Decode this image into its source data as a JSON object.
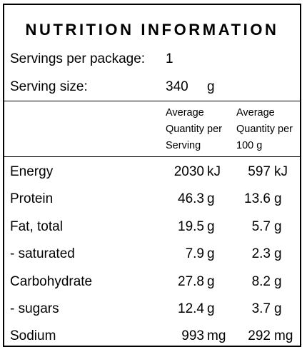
{
  "title": "NUTRITION INFORMATION",
  "servings": {
    "label": "Servings per package:",
    "value": "1"
  },
  "serving_size": {
    "label": "Serving size:",
    "value": "340",
    "unit": "g"
  },
  "columns": {
    "per_serving": [
      "Average",
      "Quantity per",
      "Serving"
    ],
    "per_100g": [
      "Average",
      "Quantity per",
      "100 g"
    ]
  },
  "rows": [
    {
      "name": "Energy",
      "serving": "2030",
      "serving_unit": "kJ",
      "per100": "597",
      "per100_unit": "kJ"
    },
    {
      "name": "Protein",
      "serving": "46.3",
      "serving_unit": "g",
      "per100": "13.6",
      "per100_unit": "g"
    },
    {
      "name": "Fat, total",
      "serving": "19.5",
      "serving_unit": "g",
      "per100": "5.7",
      "per100_unit": "g"
    },
    {
      "name": "- saturated",
      "serving": "7.9",
      "serving_unit": "g",
      "per100": "2.3",
      "per100_unit": "g"
    },
    {
      "name": "Carbohydrate",
      "serving": "27.8",
      "serving_unit": "g",
      "per100": "8.2",
      "per100_unit": "g"
    },
    {
      "name": "- sugars",
      "serving": "12.4",
      "serving_unit": "g",
      "per100": "3.7",
      "per100_unit": "g"
    },
    {
      "name": "Sodium",
      "serving": "993",
      "serving_unit": "mg",
      "per100": "292",
      "per100_unit": "mg"
    }
  ]
}
